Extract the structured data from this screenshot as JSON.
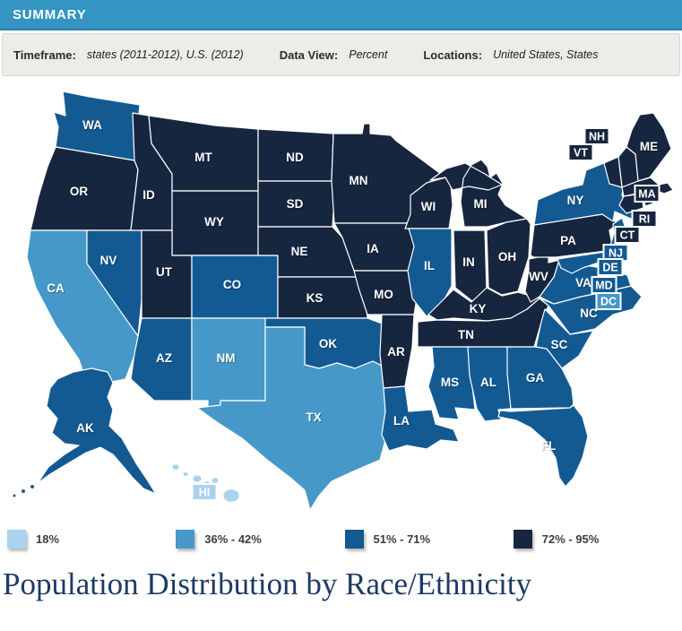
{
  "header": {
    "title": "SUMMARY",
    "bg_color": "#3494C2"
  },
  "filter_bar": {
    "items": [
      {
        "label": "Timeframe:",
        "value": "states (2011-2012), U.S. (2012)"
      },
      {
        "label": "Data View:",
        "value": "Percent"
      },
      {
        "label": "Locations:",
        "value": "United States, States"
      }
    ]
  },
  "legend": {
    "items": [
      {
        "label": "18%",
        "color": "#A9D3EF"
      },
      {
        "label": "36% - 42%",
        "color": "#4598C8"
      },
      {
        "label": "51% - 71%",
        "color": "#135A93"
      },
      {
        "label": "72% - 95%",
        "color": "#17263F"
      }
    ]
  },
  "title": "Population Distribution by Race/Ethnicity",
  "title_color": "#1D3A66",
  "chart_data": {
    "type": "choropleth",
    "title": "Population Distribution by Race/Ethnicity",
    "data_view": "Percent",
    "timeframe": "states (2011-2012), U.S. (2012)",
    "locations": "United States, States",
    "buckets": [
      "18%",
      "36% - 42%",
      "51% - 71%",
      "72% - 95%"
    ],
    "bucket_colors": [
      "#A9D3EF",
      "#4598C8",
      "#135A93",
      "#17263F"
    ],
    "states": [
      {
        "abbr": "WA",
        "bucket": 2
      },
      {
        "abbr": "OR",
        "bucket": 3
      },
      {
        "abbr": "CA",
        "bucket": 1
      },
      {
        "abbr": "NV",
        "bucket": 2
      },
      {
        "abbr": "ID",
        "bucket": 3
      },
      {
        "abbr": "MT",
        "bucket": 3
      },
      {
        "abbr": "WY",
        "bucket": 3
      },
      {
        "abbr": "UT",
        "bucket": 3
      },
      {
        "abbr": "CO",
        "bucket": 2
      },
      {
        "abbr": "AZ",
        "bucket": 2
      },
      {
        "abbr": "NM",
        "bucket": 1
      },
      {
        "abbr": "ND",
        "bucket": 3
      },
      {
        "abbr": "SD",
        "bucket": 3
      },
      {
        "abbr": "NE",
        "bucket": 3
      },
      {
        "abbr": "KS",
        "bucket": 3
      },
      {
        "abbr": "OK",
        "bucket": 2
      },
      {
        "abbr": "TX",
        "bucket": 1
      },
      {
        "abbr": "MN",
        "bucket": 3
      },
      {
        "abbr": "IA",
        "bucket": 3
      },
      {
        "abbr": "MO",
        "bucket": 3
      },
      {
        "abbr": "AR",
        "bucket": 3
      },
      {
        "abbr": "LA",
        "bucket": 2
      },
      {
        "abbr": "WI",
        "bucket": 3
      },
      {
        "abbr": "IL",
        "bucket": 2
      },
      {
        "abbr": "MI",
        "bucket": 3
      },
      {
        "abbr": "IN",
        "bucket": 3
      },
      {
        "abbr": "OH",
        "bucket": 3
      },
      {
        "abbr": "KY",
        "bucket": 3
      },
      {
        "abbr": "TN",
        "bucket": 3
      },
      {
        "abbr": "MS",
        "bucket": 2
      },
      {
        "abbr": "AL",
        "bucket": 2
      },
      {
        "abbr": "GA",
        "bucket": 2
      },
      {
        "abbr": "FL",
        "bucket": 2
      },
      {
        "abbr": "SC",
        "bucket": 2
      },
      {
        "abbr": "NC",
        "bucket": 2
      },
      {
        "abbr": "VA",
        "bucket": 2
      },
      {
        "abbr": "WV",
        "bucket": 3
      },
      {
        "abbr": "PA",
        "bucket": 3
      },
      {
        "abbr": "NY",
        "bucket": 2
      },
      {
        "abbr": "ME",
        "bucket": 3
      },
      {
        "abbr": "NH",
        "bucket": 3
      },
      {
        "abbr": "VT",
        "bucket": 3
      },
      {
        "abbr": "MA",
        "bucket": 3
      },
      {
        "abbr": "RI",
        "bucket": 3
      },
      {
        "abbr": "CT",
        "bucket": 3
      },
      {
        "abbr": "NJ",
        "bucket": 2
      },
      {
        "abbr": "DE",
        "bucket": 2
      },
      {
        "abbr": "MD",
        "bucket": 2
      },
      {
        "abbr": "DC",
        "bucket": 1
      },
      {
        "abbr": "AK",
        "bucket": 2
      },
      {
        "abbr": "HI",
        "bucket": 0
      }
    ]
  }
}
